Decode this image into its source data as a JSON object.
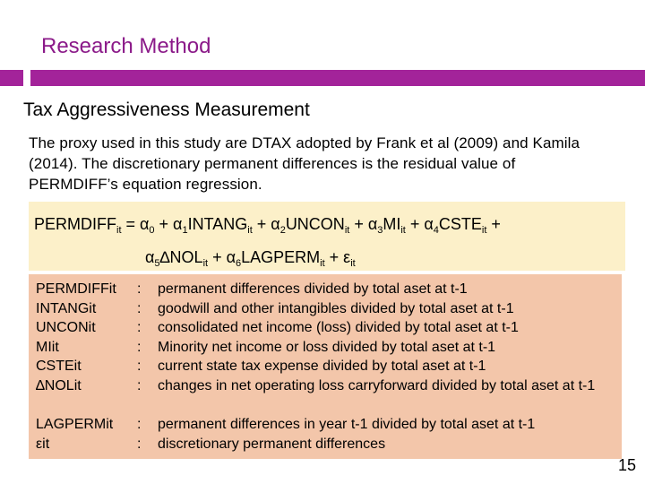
{
  "slide": {
    "title": "Research Method",
    "subtitle": "Tax Aggressiveness Measurement",
    "intro": "The proxy used in this study are DTAX adopted by Frank et al (2009) and  Kamila (2014). The discretionary permanent differences is the residual value of PERMDIFF’s equation regression.",
    "page_number": "15",
    "accent_color": "#A3239A",
    "title_color": "#8B1A89"
  },
  "equation": {
    "line1": {
      "t1": "PERMDIFF",
      "s1": "it",
      "t2": " = α",
      "s2": "0",
      "t3": " + α",
      "s3": "1",
      "t4": "INTANG",
      "s4": "it",
      "t5": " + α",
      "s5": "2",
      "t6": "UNCON",
      "s6": "it",
      "t7": " + α",
      "s7": "3",
      "t8": "MI",
      "s8": "it",
      "t9": " + α",
      "s9": "4",
      "t10": "CSTE",
      "s10": "it",
      "t11": " +"
    },
    "line2": {
      "t1": "α",
      "s1": "5",
      "t2": "∆NOL",
      "s2": "it",
      "t3": " + α",
      "s3": "6",
      "t4": "LAGPERM",
      "s4": "it",
      "t5": " + ε",
      "s5": "it"
    },
    "box_color": "#FCF0C9"
  },
  "definitions": {
    "box_color": "#F3C6AA",
    "items": [
      {
        "term": "PERMDIFFit",
        "sep": ":",
        "desc": "permanent differences divided by total aset at t-1"
      },
      {
        "term": "INTANGit",
        "sep": ":",
        "desc": "goodwill and other intangibles divided by total aset at t-1"
      },
      {
        "term": "UNCONit",
        "sep": ":",
        "desc": "consolidated net income (loss) divided by total aset at t-1"
      },
      {
        "term": "MIit",
        "sep": ":",
        "desc": "Minority net income or loss divided by total aset at t-1"
      },
      {
        "term": "CSTEit",
        "sep": ":",
        "desc": "current state tax expense divided by total aset at t-1"
      },
      {
        "term": "∆NOLit",
        "sep": ":",
        "desc": "changes in net operating loss carryforward divided by total aset at t-1"
      },
      {
        "term": "LAGPERMit",
        "sep": ":",
        "desc": "permanent differences in year t-1 divided by total aset at t-1"
      },
      {
        "term": "εit",
        "sep": ":",
        "desc": "discretionary permanent differences"
      }
    ]
  }
}
